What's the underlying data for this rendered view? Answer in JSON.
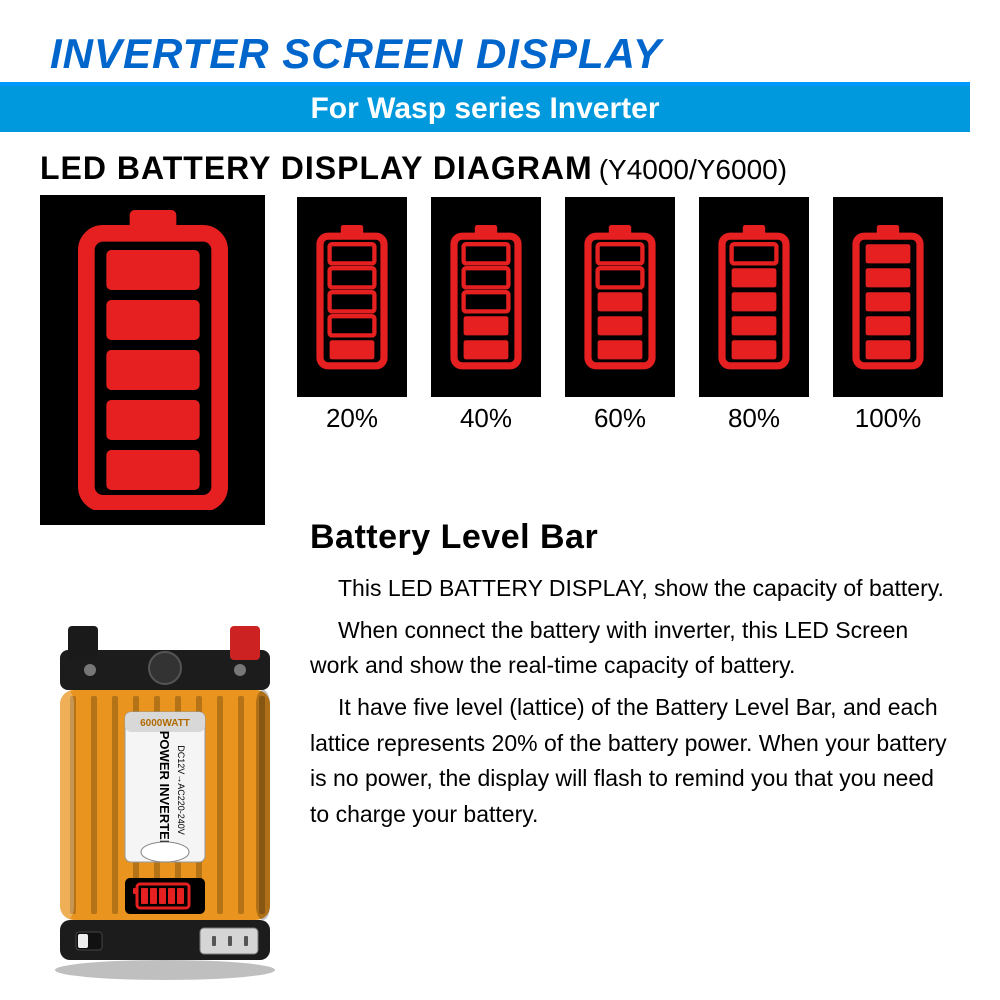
{
  "header": {
    "main_title": "INVERTER SCREEN DISPLAY",
    "subtitle": "For Wasp series Inverter",
    "title_color": "#0066cc",
    "subtitle_bg": "#0099dd",
    "subtitle_fg": "#ffffff"
  },
  "diagram": {
    "title": "LED BATTERY DISPLAY DIAGRAM",
    "model": "(Y4000/Y6000)",
    "panel_bg": "#000000",
    "icon_color": "#e62020",
    "big_battery_bars": 5,
    "items": [
      {
        "bars": 1,
        "label": "20%"
      },
      {
        "bars": 2,
        "label": "40%"
      },
      {
        "bars": 3,
        "label": "60%"
      },
      {
        "bars": 4,
        "label": "80%"
      },
      {
        "bars": 5,
        "label": "100%"
      }
    ]
  },
  "section": {
    "title": "Battery Level Bar",
    "p1": "This LED BATTERY DISPLAY, show the capacity of battery.",
    "p2": "When connect the battery with inverter, this LED Screen work and show the real-time capacity of battery.",
    "p3": "It have five level (lattice) of the Battery Level Bar, and each lattice represents 20% of the battery power. When your battery is no power, the display will flash to remind you that you need to charge your battery."
  },
  "inverter": {
    "wattage": "6000WATT",
    "label_line1": "POWER INVERTER",
    "label_line2": "DC12V→AC220-240V",
    "body_color": "#e8941f",
    "top_color": "#1c1c1c",
    "label_bg": "#f5f5f5",
    "screen_bg": "#000000",
    "led_color": "#e62020",
    "terminal_black": "#1a1a1a",
    "terminal_red": "#cc2222"
  }
}
